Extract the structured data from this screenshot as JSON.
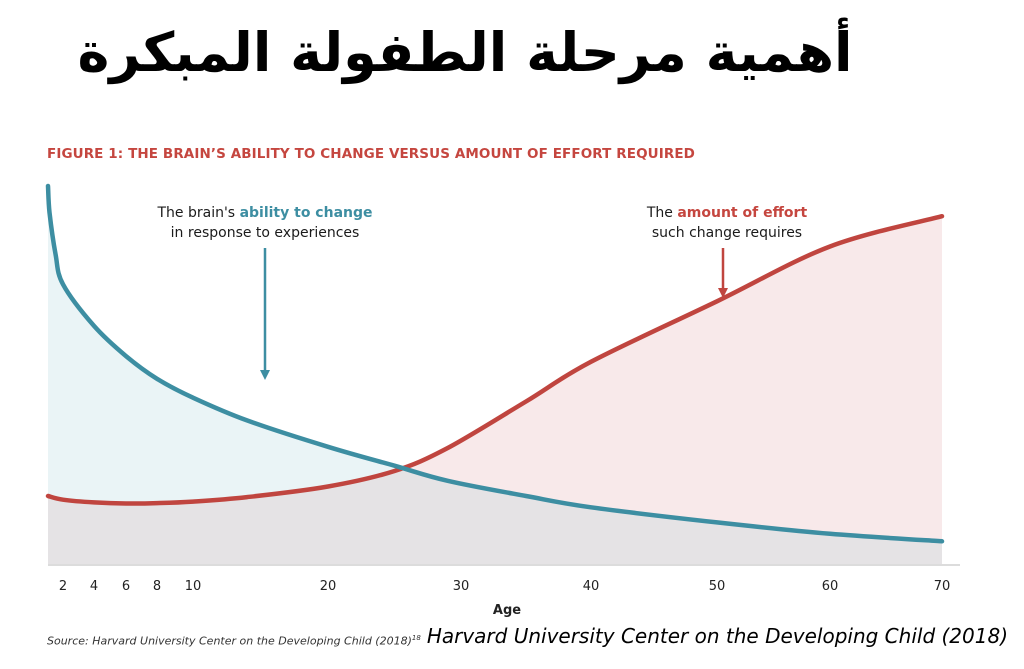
{
  "header": {
    "arabic_title": "أهمية مرحلة الطفولة المبكرة"
  },
  "chart_data": {
    "type": "area",
    "title": "FIGURE 1: THE BRAIN’S ABILITY TO CHANGE VERSUS AMOUNT OF EFFORT REQUIRED",
    "xlabel": "Age",
    "ylabel": "",
    "xticks": [
      2,
      4,
      6,
      8,
      10,
      20,
      30,
      40,
      50,
      60,
      70
    ],
    "xlim": [
      0,
      72
    ],
    "ylim": [
      0,
      100
    ],
    "grid": false,
    "series": [
      {
        "name": "The brain's ability to change in response to experiences",
        "color": "#3d8ea2",
        "fill": "#eaf4f6",
        "points": [
          [
            0,
            100
          ],
          [
            0.2,
            93
          ],
          [
            1,
            82
          ],
          [
            2,
            74
          ],
          [
            4,
            63
          ],
          [
            6,
            55
          ],
          [
            8,
            49
          ],
          [
            10,
            44
          ],
          [
            14,
            38
          ],
          [
            20,
            31
          ],
          [
            25,
            26
          ],
          [
            29,
            22
          ],
          [
            35,
            18
          ],
          [
            40,
            15
          ],
          [
            50,
            11
          ],
          [
            60,
            8
          ],
          [
            70,
            6
          ]
        ]
      },
      {
        "name": "The amount of effort such change requires",
        "color": "#c0453f",
        "fill": "#f8e9ea",
        "points": [
          [
            0,
            18
          ],
          [
            2,
            17
          ],
          [
            4,
            16.3
          ],
          [
            6,
            16
          ],
          [
            8,
            16.1
          ],
          [
            10,
            16.5
          ],
          [
            14,
            17.7
          ],
          [
            20,
            20.5
          ],
          [
            25,
            24.6
          ],
          [
            29,
            30.7
          ],
          [
            35,
            43
          ],
          [
            40,
            53.5
          ],
          [
            50,
            69.5
          ],
          [
            60,
            84
          ],
          [
            70,
            92
          ]
        ]
      }
    ],
    "annotations": [
      {
        "text_before": "The brain's ",
        "highlight": "ability to change",
        "line2": "in response to experiences"
      },
      {
        "text_before": "The ",
        "highlight": "amount of effort",
        "line2": "such change requires"
      }
    ],
    "colors": {
      "blue": "#3d8ea2",
      "red": "#c0453f",
      "overlap": "#e5e3e5"
    }
  },
  "footer": {
    "source_note": "Source: Harvard University Center on the Developing Child (2018)",
    "source_sup": "18",
    "credit": "Harvard University Center on the Developing Child (2018)"
  }
}
